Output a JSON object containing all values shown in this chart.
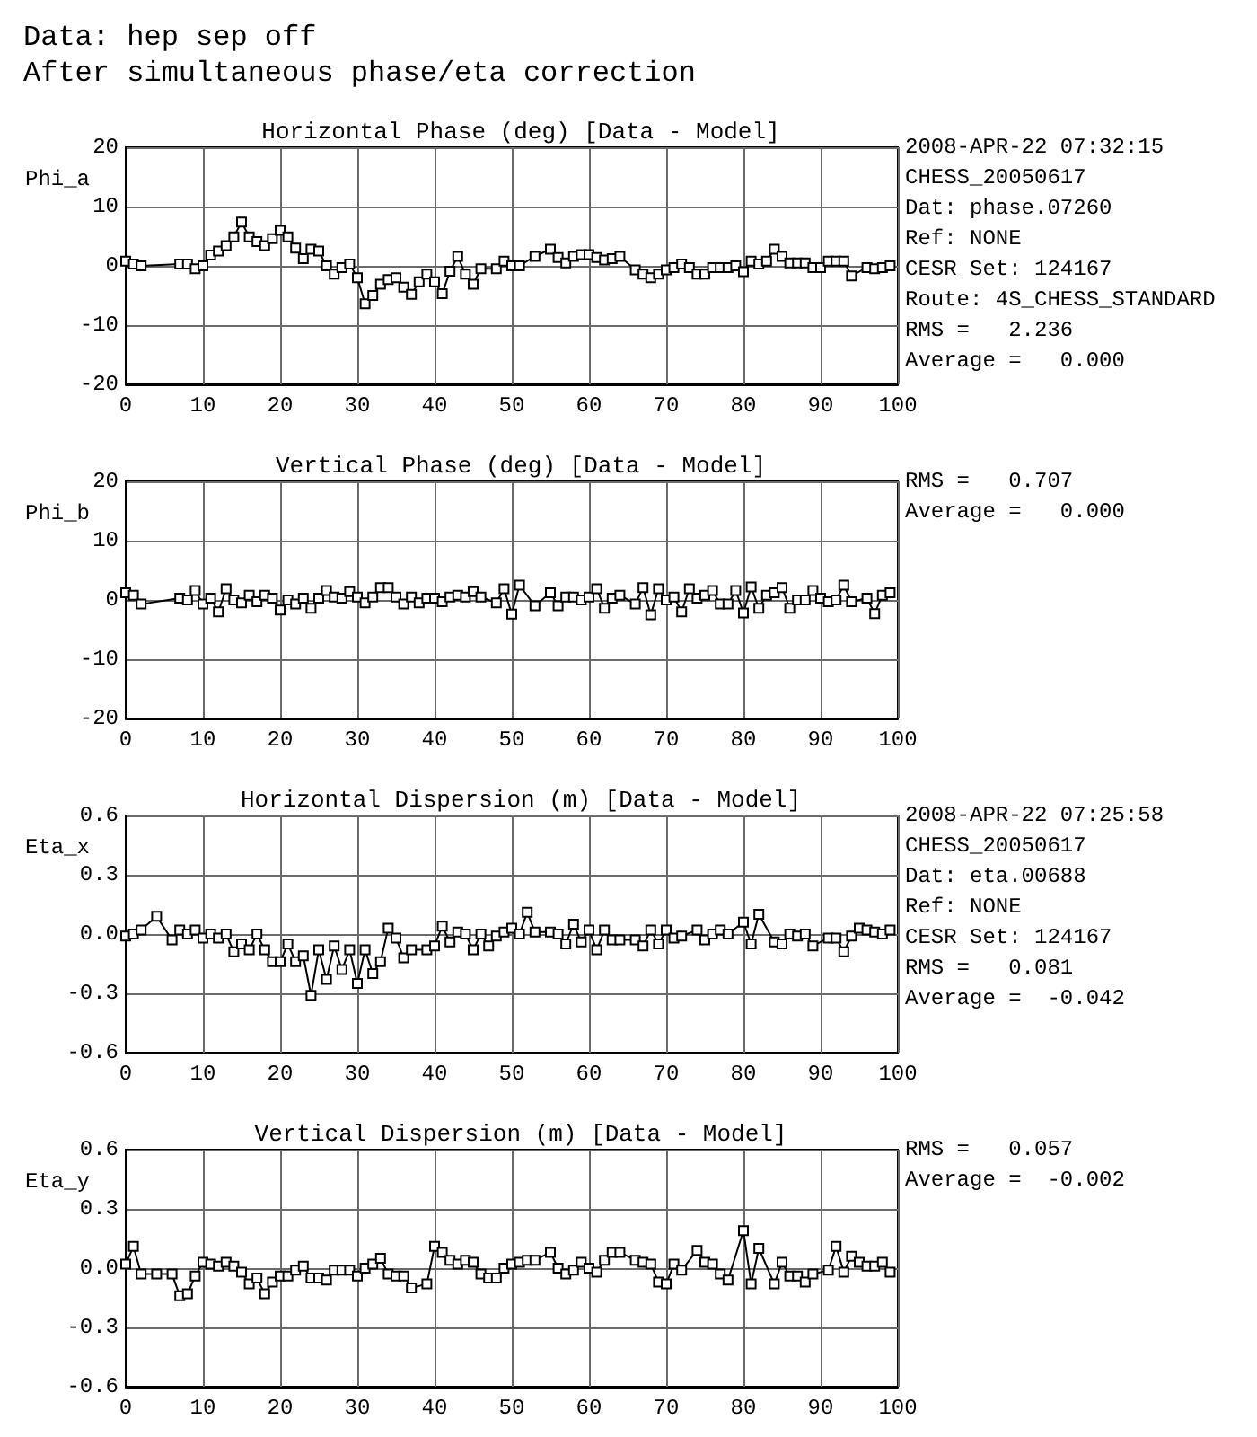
{
  "chart_data": [
    {
      "type": "other",
      "title": "Data: hep sep off",
      "subtitle": "After simultaneous phase/eta correction"
    },
    {
      "type": "line",
      "title": "Horizontal Phase (deg) [Data - Model]",
      "ylabel": "Phi_a",
      "marker": "square",
      "line_style": "solid",
      "grid": true,
      "color": "#000000",
      "x": [
        0,
        1,
        2,
        7,
        8,
        9,
        10,
        11,
        12,
        13,
        14,
        15,
        16,
        17,
        18,
        19,
        20,
        21,
        22,
        23,
        24,
        25,
        26,
        27,
        28,
        29,
        30,
        31,
        32,
        33,
        34,
        35,
        36,
        37,
        38,
        39,
        40,
        41,
        42,
        43,
        44,
        45,
        46,
        48,
        49,
        50,
        51,
        53,
        55,
        56,
        57,
        58,
        59,
        60,
        61,
        62,
        63,
        64,
        66,
        67,
        68,
        69,
        70,
        71,
        72,
        73,
        74,
        75,
        76,
        77,
        78,
        79,
        80,
        81,
        82,
        83,
        84,
        85,
        86,
        87,
        88,
        89,
        90,
        91,
        92,
        93,
        94,
        96,
        97,
        98,
        99
      ],
      "values": [
        0.8,
        0.3,
        0,
        0.3,
        0.3,
        -0.5,
        0,
        1.8,
        2.5,
        3.4,
        4.9,
        7.4,
        4.9,
        4.1,
        3.4,
        4.6,
        6,
        4.9,
        3,
        1.2,
        2.8,
        2.5,
        0,
        -1.4,
        -0.3,
        0.3,
        -2,
        -6.4,
        -5,
        -3.1,
        -2.3,
        -2,
        -3.6,
        -4.8,
        -2.7,
        -1.4,
        -2.7,
        -4.7,
        -0.9,
        1.6,
        -1.4,
        -3.1,
        -0.5,
        -0.5,
        0.8,
        0,
        0,
        1.6,
        2.8,
        1.4,
        0.5,
        1.6,
        1.9,
        1.9,
        1.4,
        1,
        1.2,
        1.6,
        -0.7,
        -1.4,
        -2,
        -1.4,
        -0.7,
        -0.3,
        0.3,
        -0.3,
        -1.4,
        -1.4,
        -0.3,
        -0.3,
        -0.3,
        0,
        -1,
        0.8,
        0.3,
        0.8,
        2.8,
        1.6,
        0.5,
        0.5,
        0.5,
        -0.3,
        -0.3,
        0.8,
        0.8,
        0.8,
        -1.7,
        -0.3,
        -0.5,
        -0.3,
        0
      ],
      "xlim": [
        0,
        100
      ],
      "xticks": [
        0,
        10,
        20,
        30,
        40,
        50,
        60,
        70,
        80,
        90,
        100
      ],
      "ylim": [
        -20,
        20
      ],
      "yticks": [
        -20,
        -10,
        0,
        10,
        20
      ],
      "annotations": [
        "2008-APR-22 07:32:15",
        "CHESS_20050617",
        "Dat: phase.07260",
        "Ref: NONE",
        "CESR Set: 124167",
        "Route: 4S_CHESS_STANDARD",
        "RMS =   2.236",
        "Average =   0.000"
      ]
    },
    {
      "type": "line",
      "title": "Vertical Phase (deg) [Data - Model]",
      "ylabel": "Phi_b",
      "marker": "square",
      "line_style": "solid",
      "grid": true,
      "color": "#000000",
      "x": [
        0,
        1,
        2,
        7,
        8,
        9,
        10,
        11,
        12,
        13,
        14,
        15,
        16,
        17,
        18,
        19,
        20,
        21,
        22,
        23,
        24,
        25,
        26,
        27,
        28,
        29,
        30,
        31,
        32,
        33,
        34,
        35,
        36,
        37,
        38,
        39,
        40,
        41,
        42,
        43,
        44,
        45,
        46,
        48,
        49,
        50,
        51,
        53,
        55,
        56,
        57,
        58,
        59,
        60,
        61,
        62,
        63,
        64,
        66,
        67,
        68,
        69,
        70,
        71,
        72,
        73,
        74,
        75,
        76,
        77,
        78,
        79,
        80,
        81,
        82,
        83,
        84,
        85,
        86,
        87,
        88,
        89,
        90,
        91,
        92,
        93,
        94,
        96,
        97,
        98,
        99
      ],
      "values": [
        1.2,
        0.8,
        -0.7,
        0.3,
        0,
        1.6,
        -0.7,
        0.3,
        -2,
        1.9,
        0,
        -0.5,
        0.8,
        -0.3,
        0.8,
        0.3,
        -1.7,
        0,
        -0.7,
        0.3,
        -1.4,
        0.3,
        1.6,
        0.5,
        0.3,
        1.4,
        0.5,
        -0.5,
        0.5,
        2.1,
        2.1,
        0.5,
        -0.7,
        0.5,
        -0.5,
        0.3,
        0.3,
        -0.3,
        0.5,
        0.8,
        0.5,
        1.4,
        0.5,
        -0.5,
        1.9,
        -2.4,
        2.5,
        -1,
        1.2,
        -1,
        0.5,
        0.5,
        0,
        0.5,
        1.9,
        -1.4,
        0.3,
        0.8,
        -0.7,
        2.1,
        -2.5,
        1.9,
        0,
        0.5,
        -2,
        1.9,
        0.3,
        0.8,
        1.6,
        -0.7,
        -0.7,
        1.6,
        -2.2,
        2.2,
        -1.4,
        0.8,
        1.2,
        2.1,
        -1.4,
        0,
        0,
        1.6,
        0.3,
        -0.3,
        0,
        2.5,
        -0.3,
        0.3,
        -2.3,
        0.8,
        1.2
      ],
      "xlim": [
        0,
        100
      ],
      "xticks": [
        0,
        10,
        20,
        30,
        40,
        50,
        60,
        70,
        80,
        90,
        100
      ],
      "ylim": [
        -20,
        20
      ],
      "yticks": [
        -20,
        -10,
        0,
        10,
        20
      ],
      "annotations": [
        "RMS =   0.707",
        "Average =   0.000"
      ]
    },
    {
      "type": "line",
      "title": "Horizontal Dispersion (m) [Data - Model]",
      "ylabel": "Eta_x",
      "marker": "square",
      "line_style": "solid",
      "grid": true,
      "color": "#000000",
      "x": [
        0,
        1,
        2,
        4,
        6,
        7,
        8,
        9,
        10,
        11,
        12,
        13,
        14,
        15,
        16,
        17,
        18,
        19,
        20,
        21,
        22,
        23,
        24,
        25,
        26,
        27,
        28,
        29,
        30,
        31,
        32,
        33,
        34,
        35,
        36,
        37,
        39,
        40,
        41,
        42,
        43,
        44,
        45,
        46,
        47,
        48,
        49,
        50,
        51,
        52,
        53,
        55,
        56,
        57,
        58,
        59,
        60,
        61,
        62,
        63,
        64,
        66,
        67,
        68,
        69,
        70,
        71,
        72,
        74,
        75,
        76,
        77,
        78,
        80,
        81,
        82,
        84,
        85,
        86,
        87,
        88,
        89,
        91,
        92,
        93,
        94,
        95,
        96,
        97,
        98,
        99
      ],
      "values": [
        -0.01,
        0,
        0.02,
        0.09,
        -0.03,
        0.02,
        0,
        0.02,
        -0.02,
        0,
        -0.02,
        0,
        -0.09,
        -0.05,
        -0.08,
        0,
        -0.08,
        -0.14,
        -0.14,
        -0.05,
        -0.14,
        -0.11,
        -0.31,
        -0.08,
        -0.23,
        -0.06,
        -0.18,
        -0.08,
        -0.25,
        -0.08,
        -0.2,
        -0.14,
        0.03,
        -0.02,
        -0.12,
        -0.08,
        -0.08,
        -0.06,
        0.04,
        -0.04,
        0.01,
        0,
        -0.08,
        0,
        -0.06,
        -0.01,
        0.01,
        0.03,
        0,
        0.11,
        0.01,
        0.01,
        0,
        -0.05,
        0.05,
        -0.04,
        0.02,
        -0.08,
        0.02,
        -0.03,
        -0.03,
        -0.03,
        -0.06,
        0.02,
        -0.05,
        0.02,
        -0.02,
        -0.01,
        0.02,
        -0.03,
        0,
        0.02,
        0,
        0.06,
        -0.05,
        0.1,
        -0.04,
        -0.05,
        0,
        -0.01,
        0,
        -0.06,
        -0.02,
        -0.02,
        -0.09,
        -0.01,
        0.03,
        0.02,
        0.01,
        0,
        0.02
      ],
      "xlim": [
        0,
        100
      ],
      "xticks": [
        0,
        10,
        20,
        30,
        40,
        50,
        60,
        70,
        80,
        90,
        100
      ],
      "ylim": [
        -0.6,
        0.6
      ],
      "yticks": [
        -0.6,
        -0.3,
        {
          "value": 0,
          "label": "0.0"
        },
        0.3,
        0.6
      ],
      "annotations": [
        "2008-APR-22 07:25:58",
        "CHESS_20050617",
        "Dat: eta.00688",
        "Ref: NONE",
        "CESR Set: 124167",
        "RMS =   0.081",
        "Average =  -0.042"
      ]
    },
    {
      "type": "line",
      "title": "Vertical Dispersion (m) [Data - Model]",
      "ylabel": "Eta_y",
      "marker": "square",
      "line_style": "solid",
      "grid": true,
      "color": "#000000",
      "x": [
        0,
        1,
        2,
        4,
        6,
        7,
        8,
        9,
        10,
        11,
        12,
        13,
        14,
        15,
        16,
        17,
        18,
        19,
        20,
        21,
        22,
        23,
        24,
        25,
        26,
        27,
        28,
        29,
        30,
        31,
        32,
        33,
        34,
        35,
        36,
        37,
        39,
        40,
        41,
        42,
        43,
        44,
        45,
        46,
        47,
        48,
        49,
        50,
        51,
        52,
        53,
        55,
        56,
        57,
        58,
        59,
        60,
        61,
        62,
        63,
        64,
        66,
        67,
        68,
        69,
        70,
        71,
        72,
        74,
        75,
        76,
        77,
        78,
        80,
        81,
        82,
        84,
        85,
        86,
        87,
        88,
        89,
        91,
        92,
        93,
        94,
        95,
        96,
        97,
        98,
        99
      ],
      "values": [
        0.02,
        0.11,
        -0.03,
        -0.03,
        -0.03,
        -0.14,
        -0.13,
        -0.04,
        0.03,
        0.02,
        0.01,
        0.03,
        0.01,
        -0.02,
        -0.08,
        -0.05,
        -0.13,
        -0.07,
        -0.04,
        -0.04,
        -0.01,
        0.01,
        -0.05,
        -0.05,
        -0.06,
        -0.01,
        -0.01,
        -0.01,
        -0.04,
        0,
        0.02,
        0.05,
        -0.03,
        -0.04,
        -0.04,
        -0.1,
        -0.08,
        0.11,
        0.08,
        0.04,
        0.02,
        0.04,
        0.03,
        -0.03,
        -0.05,
        -0.05,
        0,
        0.02,
        0.03,
        0.04,
        0.04,
        0.08,
        0,
        -0.03,
        -0.01,
        0.03,
        0,
        -0.02,
        0.04,
        0.08,
        0.08,
        0.04,
        0.03,
        0.02,
        -0.07,
        -0.08,
        0.02,
        -0.01,
        0.09,
        0.03,
        0.02,
        -0.03,
        -0.06,
        0.19,
        -0.08,
        0.1,
        -0.08,
        0.03,
        -0.04,
        -0.04,
        -0.07,
        -0.03,
        -0.01,
        0.11,
        -0.02,
        0.06,
        0.03,
        0.01,
        0.01,
        0.03,
        -0.02
      ],
      "xlim": [
        0,
        100
      ],
      "xticks": [
        0,
        10,
        20,
        30,
        40,
        50,
        60,
        70,
        80,
        90,
        100
      ],
      "ylim": [
        -0.6,
        0.6
      ],
      "yticks": [
        -0.6,
        -0.3,
        {
          "value": 0,
          "label": "0.0"
        },
        0.3,
        0.6
      ],
      "annotations": [
        "RMS =   0.057",
        "Average =  -0.002"
      ]
    }
  ]
}
